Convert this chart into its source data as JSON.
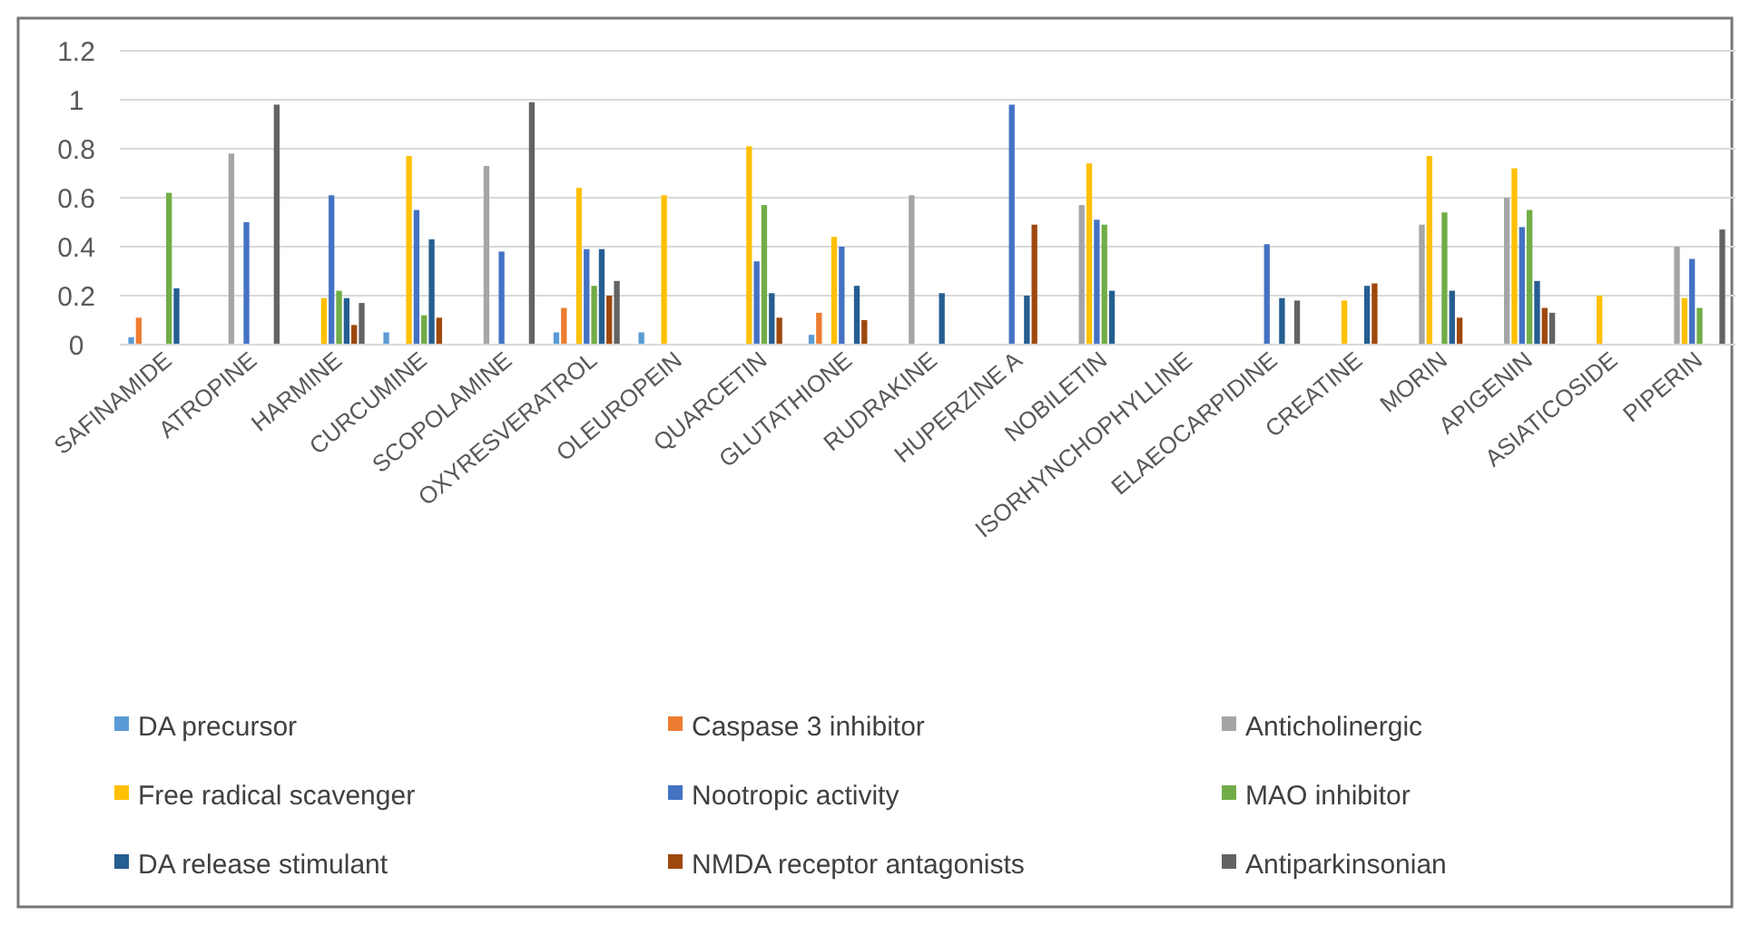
{
  "chart_data": {
    "type": "bar",
    "categories": [
      "SAFINAMIDE",
      "ATROPINE",
      "HARMINE",
      "CURCUMINE",
      "SCOPOLAMINE",
      "OXYRESVERATROL",
      "OLEUROPEIN",
      "QUARCETIN",
      "GLUTATHIONE",
      "RUDRAKINE",
      "HUPERZINE A",
      "NOBILETIN",
      "ISORHYNCHOPHYLLINE",
      "ELAEOCARPIDINE",
      "CREATINE",
      "MORIN",
      "APIGENIN",
      "ASIATICOSIDE",
      "PIPERIN"
    ],
    "series": [
      {
        "name": "DA precursor",
        "color": "#5b9bd5",
        "values": [
          0.03,
          null,
          null,
          0.05,
          null,
          0.05,
          0.05,
          null,
          0.04,
          null,
          null,
          null,
          null,
          null,
          null,
          null,
          null,
          null,
          null
        ]
      },
      {
        "name": "Caspase 3 inhibitor",
        "color": "#ed7d31",
        "values": [
          0.11,
          null,
          null,
          null,
          null,
          0.15,
          null,
          null,
          0.13,
          null,
          null,
          null,
          null,
          null,
          null,
          null,
          null,
          null,
          null
        ]
      },
      {
        "name": "Anticholinergic",
        "color": "#a5a5a5",
        "values": [
          null,
          0.78,
          null,
          null,
          0.73,
          null,
          null,
          null,
          null,
          0.61,
          null,
          0.57,
          null,
          null,
          null,
          0.49,
          0.6,
          null,
          0.4
        ]
      },
      {
        "name": "Free radical scavenger",
        "color": "#ffc000",
        "values": [
          null,
          null,
          0.19,
          0.77,
          null,
          0.64,
          0.61,
          0.81,
          0.44,
          null,
          null,
          0.74,
          null,
          null,
          0.18,
          0.77,
          0.72,
          0.2,
          0.19
        ]
      },
      {
        "name": "Nootropic activity",
        "color": "#4472c4",
        "values": [
          null,
          0.5,
          0.61,
          0.55,
          0.38,
          0.39,
          null,
          0.34,
          0.4,
          null,
          0.98,
          0.51,
          null,
          0.41,
          null,
          null,
          0.48,
          null,
          0.35
        ]
      },
      {
        "name": "MAO inhibitor",
        "color": "#70ad47",
        "values": [
          0.62,
          null,
          0.22,
          0.12,
          null,
          0.24,
          null,
          0.57,
          null,
          null,
          null,
          0.49,
          null,
          null,
          null,
          0.54,
          0.55,
          null,
          0.15
        ]
      },
      {
        "name": "DA release stimulant",
        "color": "#255e91",
        "values": [
          0.23,
          null,
          0.19,
          0.43,
          null,
          0.39,
          null,
          0.21,
          0.24,
          0.21,
          0.2,
          0.22,
          null,
          0.19,
          0.24,
          0.22,
          0.26,
          null,
          null
        ]
      },
      {
        "name": "NMDA receptor antagonists",
        "color": "#9e480e",
        "values": [
          null,
          null,
          0.08,
          0.11,
          null,
          0.2,
          null,
          0.11,
          0.1,
          null,
          0.49,
          null,
          null,
          null,
          0.25,
          0.11,
          0.15,
          null,
          null
        ]
      },
      {
        "name": "Antiparkinsonian",
        "color": "#636363",
        "values": [
          null,
          0.98,
          0.17,
          null,
          0.99,
          0.26,
          null,
          null,
          null,
          null,
          null,
          null,
          null,
          0.18,
          null,
          null,
          0.13,
          null,
          0.47
        ]
      }
    ],
    "ylim": [
      0,
      1.2
    ],
    "yticks": [
      0,
      0.2,
      0.4,
      0.6,
      0.8,
      1,
      1.2
    ],
    "grid": "y",
    "legend": "bottom"
  }
}
